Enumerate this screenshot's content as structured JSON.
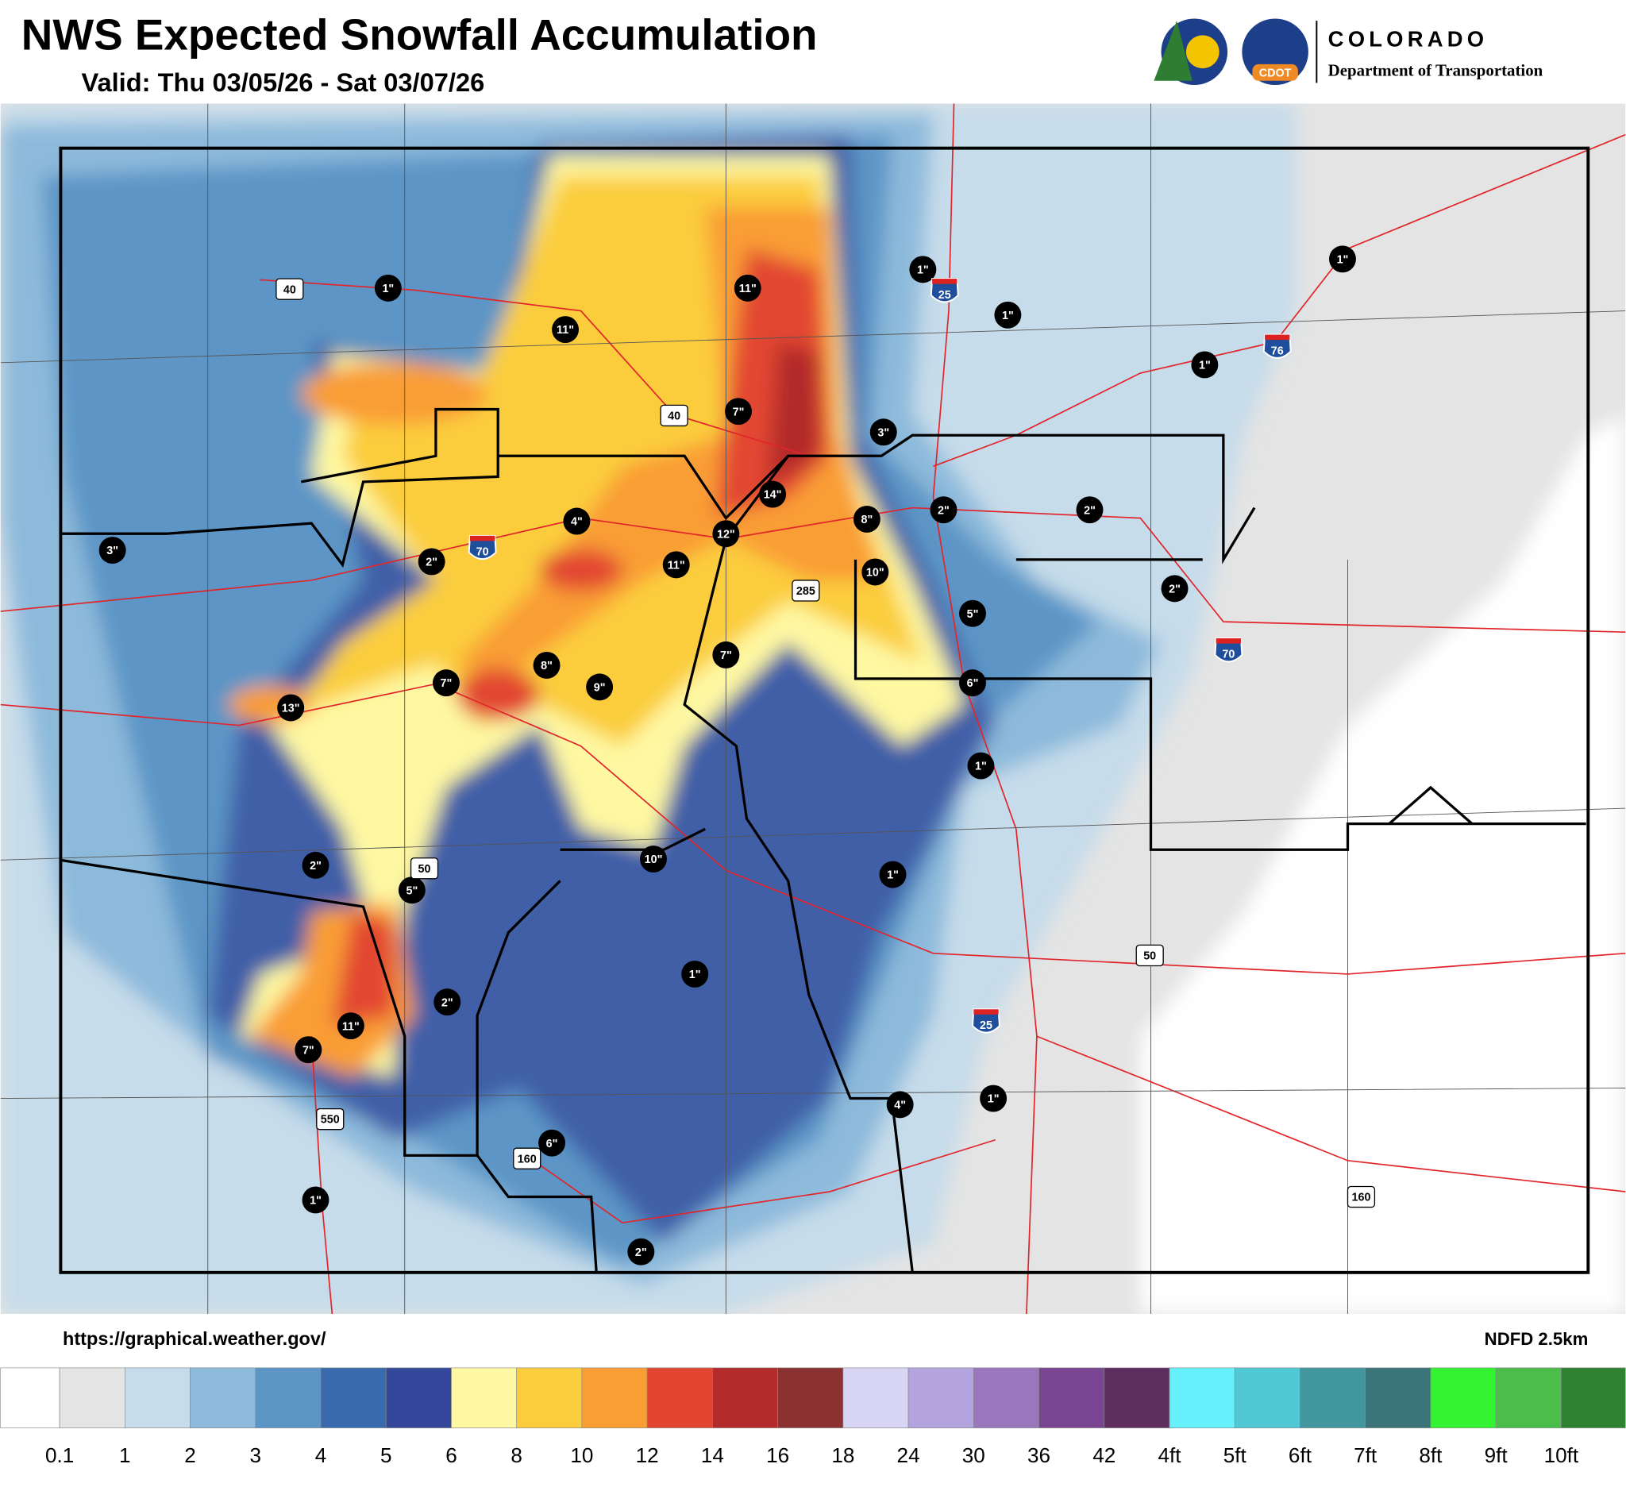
{
  "header": {
    "title": "NWS Expected Snowfall Accumulation",
    "subtitle": "Valid: Thu 03/05/26 - Sat 03/07/26",
    "logo_badge": "CDOT",
    "logo_name": "COLORADO",
    "logo_org": "Department of Transportation"
  },
  "map": {
    "spots": [
      "1\"",
      "11\"",
      "11\"",
      "1\"",
      "1\"",
      "1\"",
      "1\"",
      "7\"",
      "3\"",
      "14\"",
      "2\"",
      "2\"",
      "8\"",
      "4\"",
      "12\"",
      "11\"",
      "3\"",
      "2\"",
      "10\"",
      "2\"",
      "5\"",
      "7\"",
      "8\"",
      "9\"",
      "7\"",
      "6\"",
      "13\"",
      "1\"",
      "2\"",
      "10\"",
      "1\"",
      "5\"",
      "1\"",
      "2\"",
      "11\"",
      "7\"",
      "4\"",
      "1\"",
      "6\"",
      "1\"",
      "2\""
    ],
    "shields": [
      "40",
      "40",
      "25",
      "76",
      "70",
      "285",
      "70",
      "50",
      "50",
      "25",
      "550",
      "160",
      "160"
    ]
  },
  "footer": {
    "source": "https://graphical.weather.gov/",
    "model": "NDFD 2.5km"
  },
  "legend": {
    "colors": [
      "#ffffff",
      "#e4e4e4",
      "#c6dcea",
      "#8dbadb",
      "#5b95c6",
      "#3a6aae",
      "#34479a",
      "#fef8a2",
      "#fbcd3c",
      "#f99d35",
      "#e24631",
      "#b32b2b",
      "#8c3131",
      "#d9d5f4",
      "#b3a3de",
      "#9a76bd",
      "#7a4592",
      "#5c2f5f",
      "#66f0fb",
      "#51c8d5",
      "#42969e",
      "#3b7479",
      "#33f232",
      "#4abd4a",
      "#2e8231"
    ],
    "labels": [
      "0.1",
      "1",
      "2",
      "3",
      "4",
      "5",
      "6",
      "8",
      "10",
      "12",
      "14",
      "16",
      "18",
      "24",
      "30",
      "36",
      "42",
      "4ft",
      "5ft",
      "6ft",
      "7ft",
      "8ft",
      "9ft",
      "10ft"
    ]
  }
}
